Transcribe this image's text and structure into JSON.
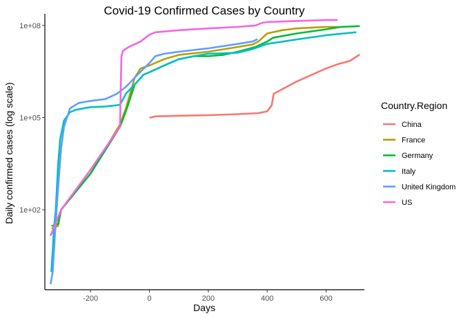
{
  "chart_data": {
    "type": "line",
    "title": "Covid-19 Confirmed Cases by Country",
    "xlabel": "Days",
    "ylabel": "Daily confirmed cases (log scale)",
    "y_scale": "log10",
    "xlim": [
      -355,
      730
    ],
    "ylim": [
      0.25,
      240000000
    ],
    "x_ticks": [
      -200,
      0,
      200,
      400,
      600
    ],
    "x_tick_labels": [
      "-200",
      "0",
      "200",
      "400",
      "600"
    ],
    "y_ticks": [
      100,
      100000,
      100000000
    ],
    "y_tick_labels": [
      "1e+02",
      "1e+05",
      "1e+08"
    ],
    "legend_title": "Country.Region",
    "legend_position": "right",
    "grid": false,
    "series": [
      {
        "name": "China",
        "color": "#F8766D",
        "points": [
          [
            3,
            100000
          ],
          [
            20,
            110000
          ],
          [
            100,
            115000
          ],
          [
            200,
            120000
          ],
          [
            300,
            130000
          ],
          [
            370,
            140000
          ],
          [
            400,
            160000
          ],
          [
            415,
            250000
          ],
          [
            422,
            600000
          ],
          [
            500,
            1500000
          ],
          [
            600,
            4000000
          ],
          [
            640,
            5500000
          ],
          [
            680,
            7000000
          ],
          [
            712,
            11000000
          ]
        ]
      },
      {
        "name": "France",
        "color": "#B79F00",
        "points": [
          [
            -330,
            25
          ],
          [
            -310,
            30
          ],
          [
            -300,
            100
          ],
          [
            -200,
            1500
          ],
          [
            -100,
            60000
          ],
          [
            -80,
            200000
          ],
          [
            -50,
            2000000
          ],
          [
            -30,
            4000000
          ],
          [
            0,
            5000000
          ],
          [
            50,
            8000000
          ],
          [
            100,
            11000000
          ],
          [
            200,
            14000000
          ],
          [
            300,
            20000000
          ],
          [
            350,
            24000000
          ],
          [
            370,
            30000000
          ],
          [
            400,
            55000000
          ],
          [
            450,
            70000000
          ],
          [
            500,
            80000000
          ],
          [
            550,
            85000000
          ],
          [
            600,
            90000000
          ],
          [
            637,
            90000000
          ]
        ]
      },
      {
        "name": "Germany",
        "color": "#00BA38",
        "points": [
          [
            -330,
            30
          ],
          [
            -310,
            35
          ],
          [
            -300,
            100
          ],
          [
            -200,
            1500
          ],
          [
            -100,
            50000
          ],
          [
            -80,
            160000
          ],
          [
            -50,
            1200000
          ],
          [
            -20,
            2500000
          ],
          [
            0,
            3000000
          ],
          [
            50,
            5000000
          ],
          [
            100,
            8000000
          ],
          [
            150,
            10000000
          ],
          [
            200,
            10000000
          ],
          [
            250,
            11000000
          ],
          [
            300,
            14000000
          ],
          [
            360,
            20000000
          ],
          [
            400,
            30000000
          ],
          [
            420,
            40000000
          ],
          [
            500,
            55000000
          ],
          [
            600,
            75000000
          ],
          [
            650,
            90000000
          ],
          [
            712,
            95000000
          ]
        ]
      },
      {
        "name": "Italy",
        "color": "#00BFC4",
        "points": [
          [
            -333,
            1
          ],
          [
            -328,
            5
          ],
          [
            -325,
            20
          ],
          [
            -318,
            100
          ],
          [
            -310,
            3000
          ],
          [
            -303,
            20000
          ],
          [
            -290,
            80000
          ],
          [
            -270,
            150000
          ],
          [
            -250,
            180000
          ],
          [
            -200,
            220000
          ],
          [
            -150,
            230000
          ],
          [
            -100,
            260000
          ],
          [
            -80,
            600000
          ],
          [
            -50,
            1200000
          ],
          [
            -20,
            2500000
          ],
          [
            0,
            3000000
          ],
          [
            50,
            5000000
          ],
          [
            100,
            8000000
          ],
          [
            150,
            10000000
          ],
          [
            200,
            12000000
          ],
          [
            300,
            13000000
          ],
          [
            350,
            17000000
          ],
          [
            400,
            25000000
          ],
          [
            500,
            35000000
          ],
          [
            600,
            48000000
          ],
          [
            700,
            60000000
          ]
        ]
      },
      {
        "name": "United Kingdom",
        "color": "#619CFF",
        "points": [
          [
            -335,
            0.4
          ],
          [
            -328,
            1
          ],
          [
            -320,
            20
          ],
          [
            -310,
            500
          ],
          [
            -300,
            10000
          ],
          [
            -290,
            50000
          ],
          [
            -270,
            200000
          ],
          [
            -240,
            300000
          ],
          [
            -200,
            350000
          ],
          [
            -150,
            400000
          ],
          [
            -110,
            600000
          ],
          [
            -80,
            1000000
          ],
          [
            -50,
            2000000
          ],
          [
            0,
            6000000
          ],
          [
            20,
            10000000
          ],
          [
            50,
            12000000
          ],
          [
            100,
            14000000
          ],
          [
            200,
            18000000
          ],
          [
            300,
            25000000
          ],
          [
            350,
            30000000
          ],
          [
            365,
            35000000
          ]
        ]
      },
      {
        "name": "US",
        "color": "#F564E3",
        "points": [
          [
            -335,
            15
          ],
          [
            -325,
            25
          ],
          [
            -300,
            100
          ],
          [
            -200,
            2000
          ],
          [
            -100,
            50000
          ],
          [
            -95,
            10000000
          ],
          [
            -90,
            15000000
          ],
          [
            -70,
            20000000
          ],
          [
            -30,
            30000000
          ],
          [
            0,
            50000000
          ],
          [
            20,
            60000000
          ],
          [
            100,
            70000000
          ],
          [
            200,
            80000000
          ],
          [
            300,
            90000000
          ],
          [
            360,
            100000000
          ],
          [
            380,
            120000000
          ],
          [
            400,
            130000000
          ],
          [
            500,
            140000000
          ],
          [
            600,
            150000000
          ],
          [
            637,
            150000000
          ]
        ]
      }
    ]
  }
}
